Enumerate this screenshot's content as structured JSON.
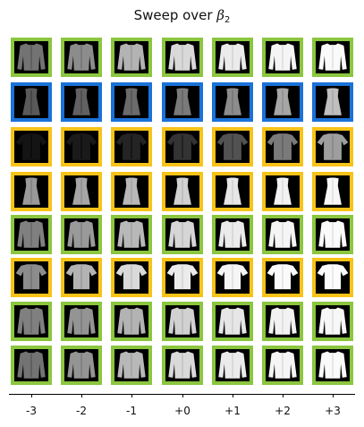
{
  "chart_data": {
    "type": "heatmap",
    "title_text": "Sweep over ",
    "title_symbol": "β",
    "title_subscript": "2",
    "xlabel": "",
    "ylabel": "",
    "tick_labels": [
      "-3",
      "-2",
      "-1",
      "+0",
      "+1",
      "+2",
      "+3"
    ],
    "border_colors": {
      "green": "#8bc63f",
      "blue": "#1a72d8",
      "yellow": "#f7c318"
    },
    "rows": [
      {
        "border": "green",
        "garment": "coat",
        "brightness": [
          0.45,
          0.55,
          0.7,
          0.85,
          0.92,
          0.96,
          0.98
        ]
      },
      {
        "border": "blue",
        "garment": "dress",
        "brightness": [
          0.35,
          0.38,
          0.42,
          0.48,
          0.55,
          0.65,
          0.75
        ]
      },
      {
        "border": "yellow",
        "garment": "shirt",
        "brightness": [
          0.08,
          0.1,
          0.14,
          0.2,
          0.32,
          0.48,
          0.62
        ]
      },
      {
        "border": "yellow",
        "garment": "dress",
        "brightness": [
          0.6,
          0.65,
          0.72,
          0.82,
          0.9,
          0.95,
          0.97
        ]
      },
      {
        "border": "green",
        "garment": "coat",
        "brightness": [
          0.5,
          0.6,
          0.72,
          0.84,
          0.92,
          0.96,
          0.98
        ]
      },
      {
        "border": "yellow",
        "garment": "tshirt",
        "brightness": [
          0.55,
          0.7,
          0.85,
          0.92,
          0.96,
          0.98,
          0.99
        ]
      },
      {
        "border": "green",
        "garment": "coat",
        "brightness": [
          0.5,
          0.58,
          0.7,
          0.82,
          0.9,
          0.95,
          0.97
        ]
      },
      {
        "border": "green",
        "garment": "coat",
        "brightness": [
          0.45,
          0.58,
          0.72,
          0.85,
          0.92,
          0.96,
          0.98
        ]
      }
    ]
  }
}
